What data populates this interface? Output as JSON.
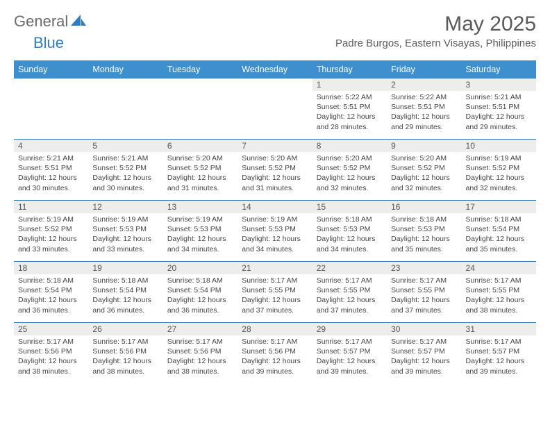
{
  "logo": {
    "text1": "General",
    "text2": "Blue"
  },
  "title": "May 2025",
  "subtitle": "Padre Burgos, Eastern Visayas, Philippines",
  "colors": {
    "header_bg": "#3d8fce",
    "header_text": "#ffffff",
    "border": "#2f7dc0",
    "daynum_bg": "#ededed",
    "logo_blue": "#2f7dc0",
    "logo_gray": "#6a6a6a"
  },
  "weekdays": [
    "Sunday",
    "Monday",
    "Tuesday",
    "Wednesday",
    "Thursday",
    "Friday",
    "Saturday"
  ],
  "weeks": [
    [
      null,
      null,
      null,
      null,
      {
        "n": "1",
        "sr": "5:22 AM",
        "ss": "5:51 PM",
        "dl": "12 hours and 28 minutes."
      },
      {
        "n": "2",
        "sr": "5:22 AM",
        "ss": "5:51 PM",
        "dl": "12 hours and 29 minutes."
      },
      {
        "n": "3",
        "sr": "5:21 AM",
        "ss": "5:51 PM",
        "dl": "12 hours and 29 minutes."
      }
    ],
    [
      {
        "n": "4",
        "sr": "5:21 AM",
        "ss": "5:51 PM",
        "dl": "12 hours and 30 minutes."
      },
      {
        "n": "5",
        "sr": "5:21 AM",
        "ss": "5:52 PM",
        "dl": "12 hours and 30 minutes."
      },
      {
        "n": "6",
        "sr": "5:20 AM",
        "ss": "5:52 PM",
        "dl": "12 hours and 31 minutes."
      },
      {
        "n": "7",
        "sr": "5:20 AM",
        "ss": "5:52 PM",
        "dl": "12 hours and 31 minutes."
      },
      {
        "n": "8",
        "sr": "5:20 AM",
        "ss": "5:52 PM",
        "dl": "12 hours and 32 minutes."
      },
      {
        "n": "9",
        "sr": "5:20 AM",
        "ss": "5:52 PM",
        "dl": "12 hours and 32 minutes."
      },
      {
        "n": "10",
        "sr": "5:19 AM",
        "ss": "5:52 PM",
        "dl": "12 hours and 32 minutes."
      }
    ],
    [
      {
        "n": "11",
        "sr": "5:19 AM",
        "ss": "5:52 PM",
        "dl": "12 hours and 33 minutes."
      },
      {
        "n": "12",
        "sr": "5:19 AM",
        "ss": "5:53 PM",
        "dl": "12 hours and 33 minutes."
      },
      {
        "n": "13",
        "sr": "5:19 AM",
        "ss": "5:53 PM",
        "dl": "12 hours and 34 minutes."
      },
      {
        "n": "14",
        "sr": "5:19 AM",
        "ss": "5:53 PM",
        "dl": "12 hours and 34 minutes."
      },
      {
        "n": "15",
        "sr": "5:18 AM",
        "ss": "5:53 PM",
        "dl": "12 hours and 34 minutes."
      },
      {
        "n": "16",
        "sr": "5:18 AM",
        "ss": "5:53 PM",
        "dl": "12 hours and 35 minutes."
      },
      {
        "n": "17",
        "sr": "5:18 AM",
        "ss": "5:54 PM",
        "dl": "12 hours and 35 minutes."
      }
    ],
    [
      {
        "n": "18",
        "sr": "5:18 AM",
        "ss": "5:54 PM",
        "dl": "12 hours and 36 minutes."
      },
      {
        "n": "19",
        "sr": "5:18 AM",
        "ss": "5:54 PM",
        "dl": "12 hours and 36 minutes."
      },
      {
        "n": "20",
        "sr": "5:18 AM",
        "ss": "5:54 PM",
        "dl": "12 hours and 36 minutes."
      },
      {
        "n": "21",
        "sr": "5:17 AM",
        "ss": "5:55 PM",
        "dl": "12 hours and 37 minutes."
      },
      {
        "n": "22",
        "sr": "5:17 AM",
        "ss": "5:55 PM",
        "dl": "12 hours and 37 minutes."
      },
      {
        "n": "23",
        "sr": "5:17 AM",
        "ss": "5:55 PM",
        "dl": "12 hours and 37 minutes."
      },
      {
        "n": "24",
        "sr": "5:17 AM",
        "ss": "5:55 PM",
        "dl": "12 hours and 38 minutes."
      }
    ],
    [
      {
        "n": "25",
        "sr": "5:17 AM",
        "ss": "5:56 PM",
        "dl": "12 hours and 38 minutes."
      },
      {
        "n": "26",
        "sr": "5:17 AM",
        "ss": "5:56 PM",
        "dl": "12 hours and 38 minutes."
      },
      {
        "n": "27",
        "sr": "5:17 AM",
        "ss": "5:56 PM",
        "dl": "12 hours and 38 minutes."
      },
      {
        "n": "28",
        "sr": "5:17 AM",
        "ss": "5:56 PM",
        "dl": "12 hours and 39 minutes."
      },
      {
        "n": "29",
        "sr": "5:17 AM",
        "ss": "5:57 PM",
        "dl": "12 hours and 39 minutes."
      },
      {
        "n": "30",
        "sr": "5:17 AM",
        "ss": "5:57 PM",
        "dl": "12 hours and 39 minutes."
      },
      {
        "n": "31",
        "sr": "5:17 AM",
        "ss": "5:57 PM",
        "dl": "12 hours and 39 minutes."
      }
    ]
  ],
  "labels": {
    "sunrise": "Sunrise: ",
    "sunset": "Sunset: ",
    "daylight": "Daylight: "
  }
}
